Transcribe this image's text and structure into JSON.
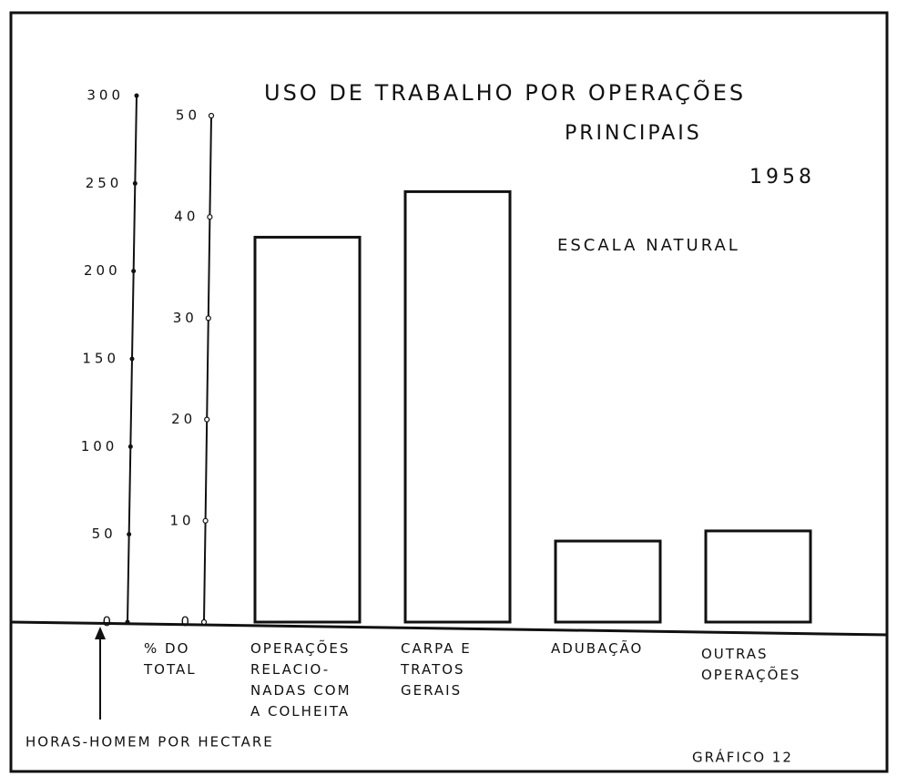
{
  "chart_data": {
    "type": "bar",
    "title": "USO DE TRABALHO POR OPERAÇÕES",
    "subtitle": "PRINCIPAIS",
    "year": "1958",
    "annotation": "ESCALA NATURAL",
    "categories": [
      "OPERAÇÕES\nRELACIO-\nNADAS COM\nA COLHEITA",
      "CARPA E\nTRATOS\nGERAIS",
      "ADUBAÇÃO",
      "OUTRAS\nOPERAÇÕES"
    ],
    "values": [
      38,
      42.5,
      8,
      9
    ],
    "color": "#ffffff",
    "y_label": "% DO\nTOTAL",
    "ylim": [
      0,
      50
    ],
    "yticks": [
      0,
      10,
      20,
      30,
      40,
      50
    ],
    "y2_label": "HORAS-HOMEM POR HECTARE",
    "y2lim": [
      0,
      300
    ],
    "y2ticks": [
      0,
      50,
      100,
      150,
      200,
      250,
      300
    ],
    "footer": "GRÁFICO 12"
  }
}
